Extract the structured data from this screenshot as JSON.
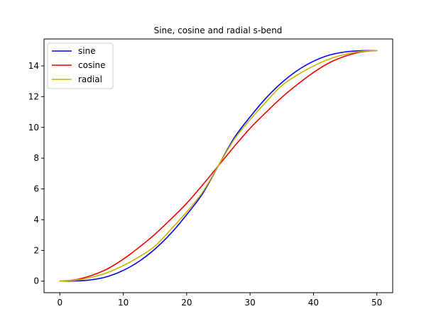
{
  "chart_data": {
    "type": "line",
    "title": "Sine, cosine and radial s-bend",
    "xlabel": "",
    "ylabel": "",
    "xlim": [
      -2.5,
      52.5
    ],
    "ylim": [
      -0.75,
      15.75
    ],
    "xticks": [
      0,
      10,
      20,
      30,
      40,
      50
    ],
    "yticks": [
      0,
      2,
      4,
      6,
      8,
      10,
      12,
      14
    ],
    "grid": false,
    "legend_position": "top-left",
    "x": [
      0,
      2.5,
      5,
      7.5,
      10,
      12.5,
      15,
      17.5,
      20,
      22.5,
      25,
      27.5,
      30,
      32.5,
      35,
      37.5,
      40,
      42.5,
      45,
      47.5,
      50
    ],
    "series": [
      {
        "name": "sine",
        "color": "#0000ff",
        "values": [
          0.0,
          0.01,
          0.09,
          0.3,
          0.7,
          1.29,
          2.09,
          3.1,
          4.32,
          5.68,
          7.5,
          9.32,
          10.68,
          11.9,
          12.91,
          13.71,
          14.3,
          14.7,
          14.91,
          14.99,
          15.0
        ]
      },
      {
        "name": "cosine",
        "color": "#ee0000",
        "values": [
          0.0,
          0.09,
          0.37,
          0.8,
          1.43,
          2.2,
          3.05,
          4.03,
          5.06,
          6.25,
          7.5,
          8.75,
          9.94,
          10.97,
          11.95,
          12.8,
          13.57,
          14.2,
          14.63,
          14.91,
          15.0
        ]
      },
      {
        "name": "radial",
        "color": "#c8b400",
        "values": [
          0.0,
          0.06,
          0.25,
          0.56,
          1.01,
          1.58,
          2.28,
          3.36,
          4.5,
          5.78,
          7.5,
          9.22,
          10.5,
          11.64,
          12.72,
          13.42,
          13.99,
          14.44,
          14.75,
          14.94,
          15.0
        ]
      }
    ]
  }
}
